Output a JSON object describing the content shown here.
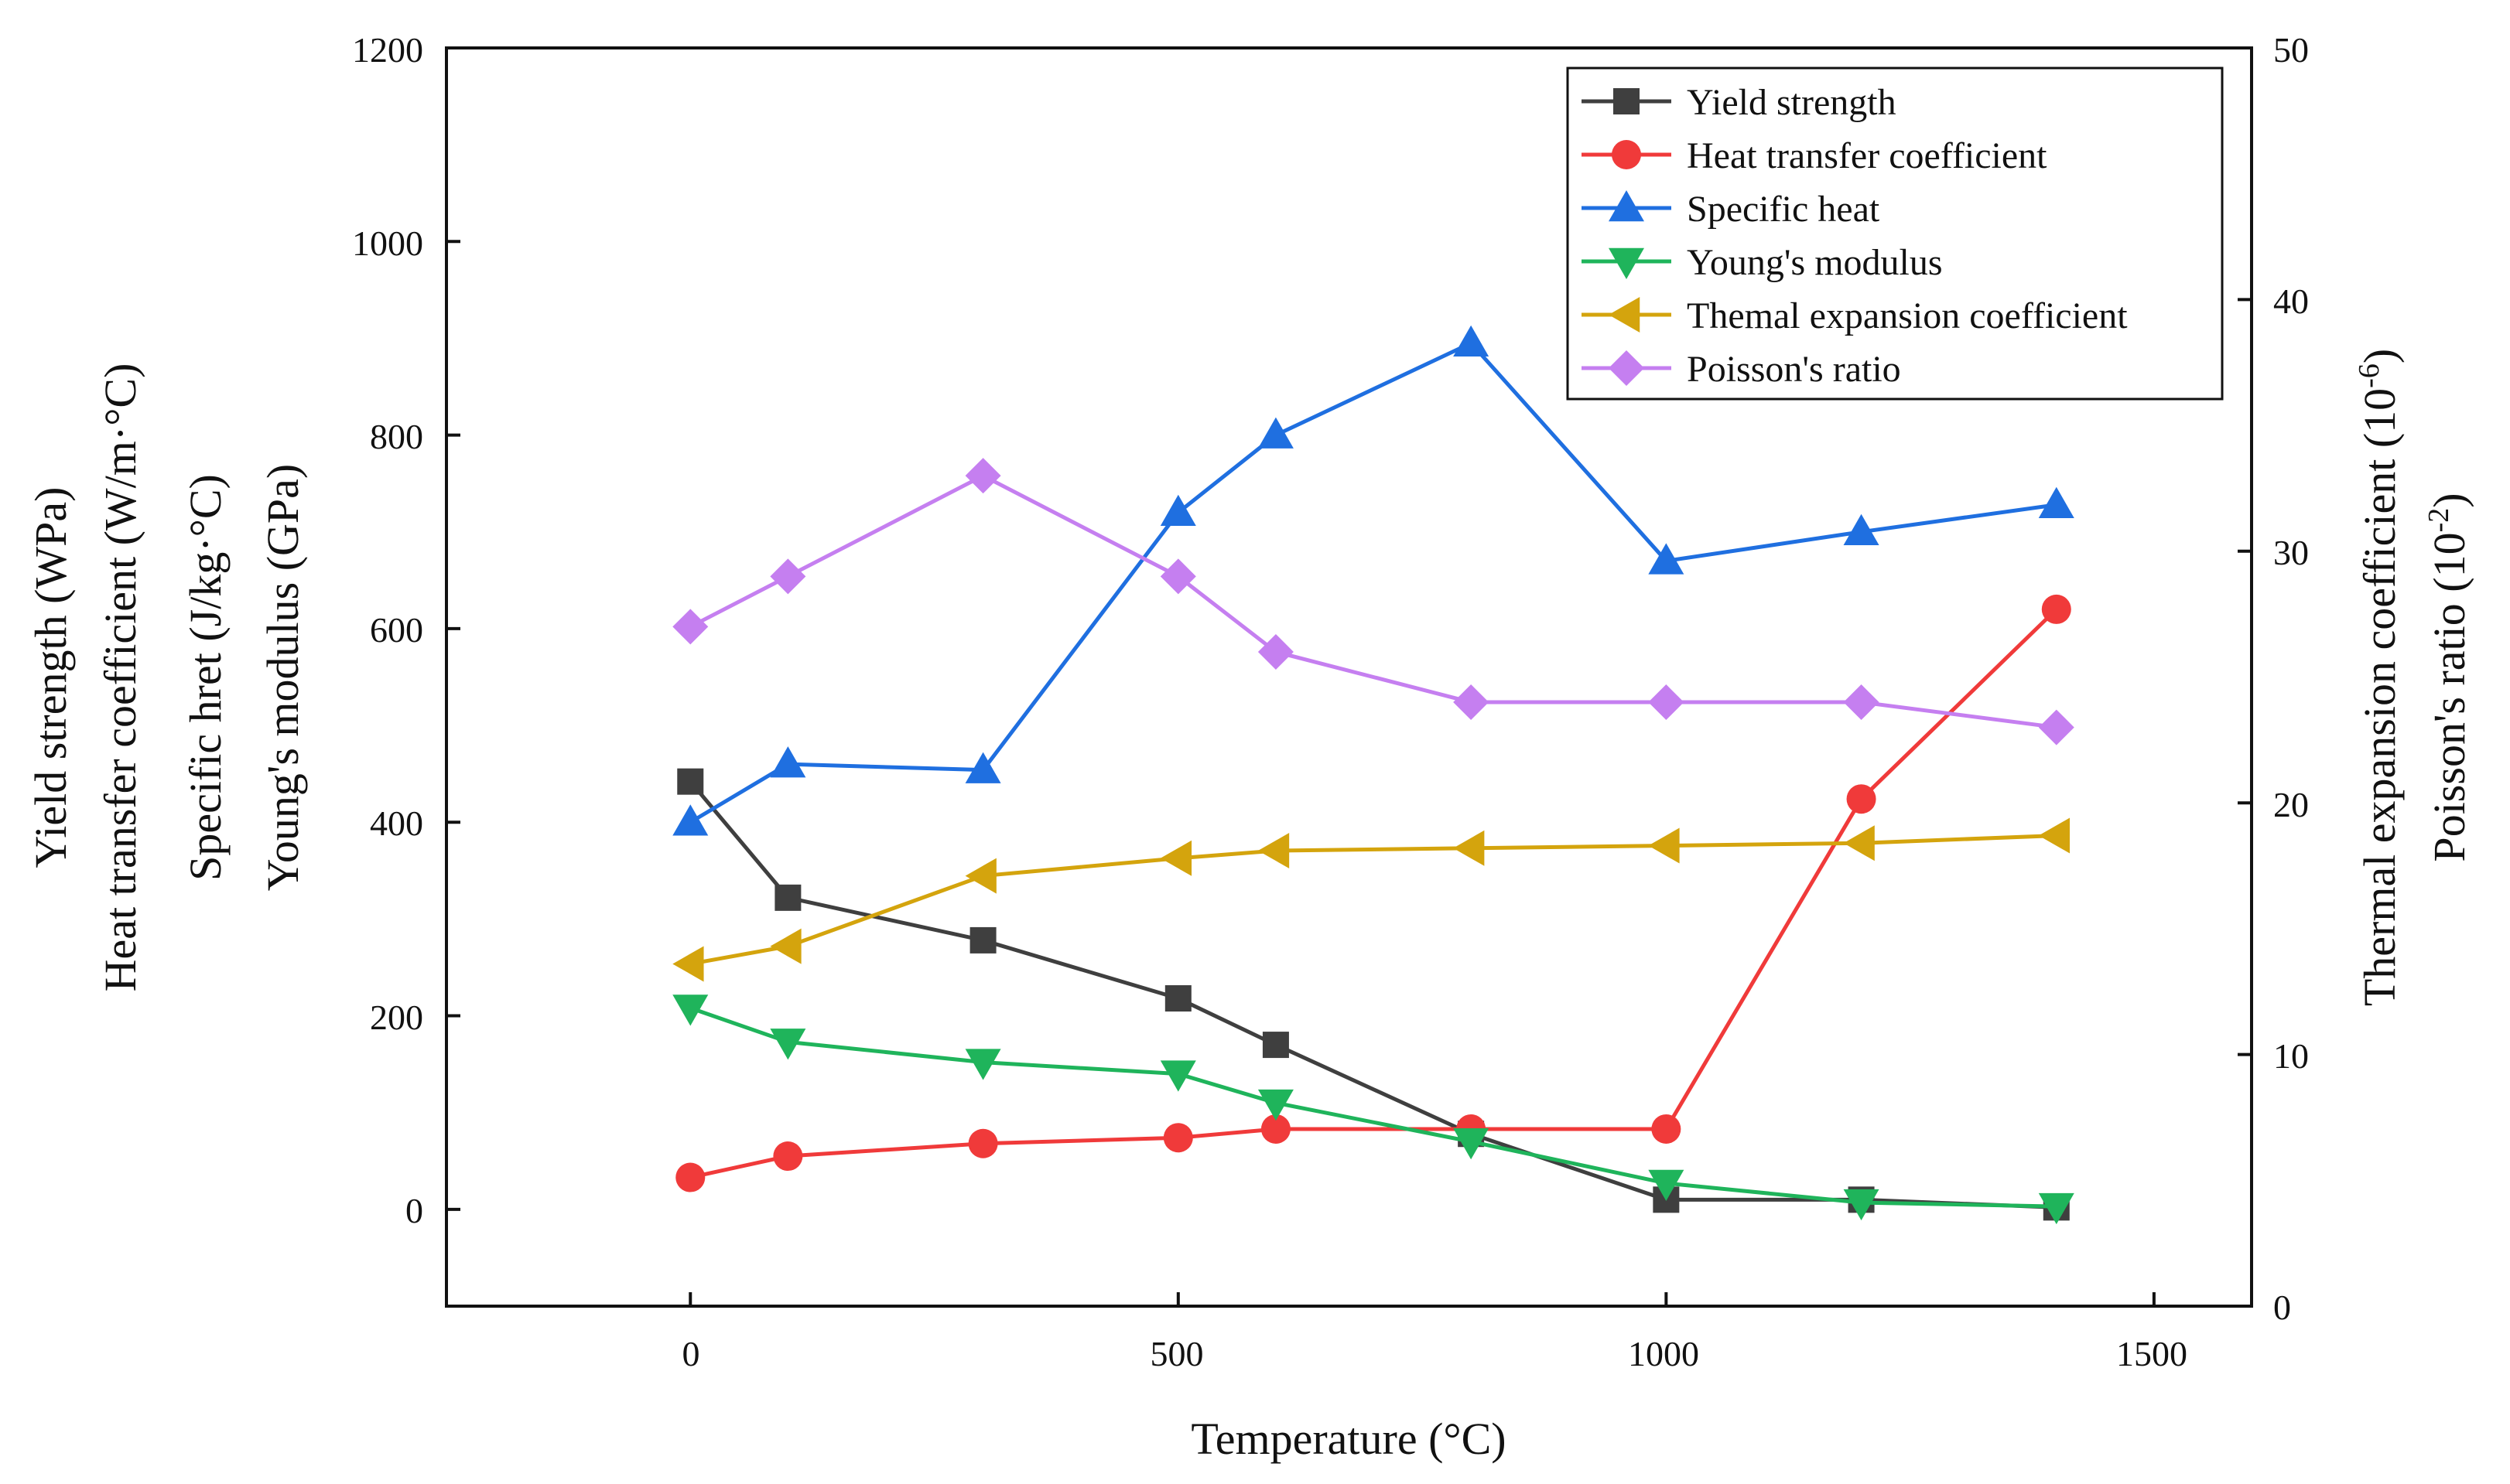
{
  "chart_data": {
    "type": "line",
    "title": "",
    "xlabel": "Temperature (°C)",
    "xlim": [
      -250,
      1600
    ],
    "xticks": [
      0,
      500,
      1000,
      1500
    ],
    "left_axis": {
      "labels": [
        "Yield strength (WPa)",
        "Heat transfer coefficient (W/m·°C)",
        "Specific hret (J/kg·°C)",
        "Young's modulus (GPa)"
      ],
      "ylim": [
        -100,
        1200
      ],
      "ticks": [
        0,
        200,
        400,
        600,
        800,
        1000,
        1200
      ]
    },
    "right_axis": {
      "label_main": "Thermal expansion coefficient (10",
      "label_sup": "-6",
      "label_close": ")",
      "label2_main": "Poisson's ratio (10",
      "label2_sup": "-2",
      "label2_close": ")",
      "ylim": [
        0,
        50
      ],
      "ticks": [
        0,
        10,
        20,
        30,
        40,
        50
      ]
    },
    "legend_position": "top-right",
    "series": [
      {
        "name": "Yield strength",
        "axis": "left",
        "marker": "square",
        "color": "#3f3f3f",
        "x": [
          0,
          100,
          300,
          500,
          600,
          800,
          1000,
          1200,
          1400
        ],
        "y": [
          442,
          322,
          278,
          218,
          170,
          78,
          10,
          10,
          2
        ]
      },
      {
        "name": "Heat transfer coefficient",
        "axis": "left",
        "marker": "circle",
        "color": "#f03a3a",
        "x": [
          0,
          100,
          300,
          500,
          600,
          800,
          1000,
          1200,
          1400
        ],
        "y": [
          33,
          55,
          68,
          74,
          83,
          83,
          83,
          424,
          620
        ]
      },
      {
        "name": "Specific heat",
        "axis": "left",
        "marker": "triangle-up",
        "color": "#1f6fe0",
        "x": [
          0,
          100,
          300,
          500,
          600,
          800,
          1000,
          1200,
          1400
        ],
        "y": [
          400,
          460,
          454,
          720,
          800,
          895,
          670,
          700,
          728
        ]
      },
      {
        "name": "Young's modulus",
        "axis": "left",
        "marker": "triangle-down",
        "color": "#1fb45b",
        "x": [
          0,
          100,
          300,
          500,
          600,
          800,
          1000,
          1200,
          1400
        ],
        "y": [
          208,
          173,
          152,
          140,
          110,
          70,
          27,
          7,
          3
        ]
      },
      {
        "name": "Themal expansion coefficient",
        "axis": "right",
        "marker": "triangle-left",
        "color": "#d4a40d",
        "x": [
          0,
          100,
          300,
          500,
          600,
          800,
          1000,
          1200,
          1400
        ],
        "y": [
          13.6,
          14.3,
          17.1,
          17.8,
          18.1,
          18.2,
          18.3,
          18.4,
          18.7
        ]
      },
      {
        "name": "Poisson's ratio",
        "axis": "right",
        "marker": "diamond",
        "color": "#c57ff0",
        "x": [
          0,
          100,
          300,
          500,
          600,
          800,
          1000,
          1200,
          1400
        ],
        "y": [
          27,
          29,
          33,
          29,
          26,
          24,
          24,
          24,
          23
        ]
      }
    ]
  }
}
